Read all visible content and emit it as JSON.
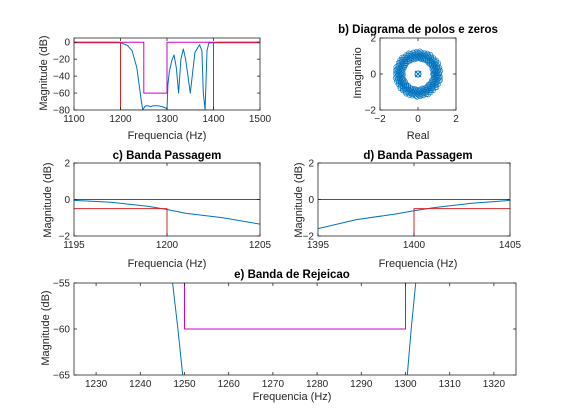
{
  "chart_data": [
    {
      "id": "a",
      "type": "line",
      "title": "",
      "xlabel": "Frequencia (Hz)",
      "ylabel": "Magnitude (dB)",
      "xlim": [
        1100,
        1500
      ],
      "ylim": [
        -80,
        5
      ],
      "xticks": [
        1100,
        1200,
        1300,
        1400,
        1500
      ],
      "yticks": [
        -80,
        -60,
        -40,
        -20,
        0
      ],
      "series": [
        {
          "color": "#0072BD",
          "kind": "response_full",
          "x": [
            1100,
            1150,
            1180,
            1195,
            1200,
            1205,
            1215,
            1225,
            1235,
            1245,
            1248,
            1250,
            1252,
            1255,
            1260,
            1265,
            1270,
            1280,
            1290,
            1299,
            1300,
            1302,
            1305,
            1310,
            1315,
            1320,
            1325,
            1330,
            1335,
            1340,
            1350,
            1360,
            1370,
            1375,
            1378,
            1382,
            1386,
            1390,
            1395,
            1400,
            1410,
            1450,
            1500
          ],
          "y": [
            0,
            0,
            0,
            0,
            -0.5,
            -1.5,
            -4,
            -10,
            -30,
            -70,
            -80,
            -78,
            -76,
            -75,
            -75,
            -76,
            -75,
            -75,
            -76,
            -78,
            -80,
            -50,
            -35,
            -22,
            -15,
            -30,
            -60,
            -20,
            -8,
            -20,
            -60,
            -12,
            -3,
            -10,
            -60,
            -80,
            -10,
            -1,
            -0.5,
            -0.5,
            0,
            0,
            0
          ]
        },
        {
          "color": "#CC00CC",
          "kind": "mask_upper",
          "x": [
            1100,
            1250,
            1250,
            1300,
            1300,
            1500
          ],
          "y": [
            0,
            0,
            -60,
            -60,
            0,
            0
          ]
        },
        {
          "color": "#D62728",
          "kind": "mask_lower",
          "x": [
            1100,
            1200,
            1200,
            1400,
            1400,
            1500
          ],
          "y": [
            -0.5,
            -0.5,
            -80,
            -80,
            -0.5,
            -0.5
          ]
        }
      ]
    },
    {
      "id": "b",
      "type": "scatter",
      "title": "b) Diagrama de polos e zeros",
      "xlabel": "Real",
      "ylabel": "Imaginario",
      "xlim": [
        -2,
        2
      ],
      "ylim": [
        -2,
        2
      ],
      "xticks": [
        -2,
        0,
        2
      ],
      "yticks": [
        -2,
        0,
        2
      ],
      "annotation": "342",
      "points": {
        "shape": "unit_circle_ring",
        "count": 342,
        "radius": 1,
        "color": "#0072BD"
      }
    },
    {
      "id": "c",
      "type": "line",
      "title": "c) Banda Passagem",
      "xlabel": "Frequencia (Hz)",
      "ylabel": "Magnitude (dB)",
      "xlim": [
        1195,
        1205
      ],
      "ylim": [
        -2,
        2
      ],
      "xticks": [
        1195,
        1200,
        1205
      ],
      "yticks": [
        -2,
        0,
        2
      ],
      "series": [
        {
          "color": "#0072BD",
          "kind": "response",
          "x": [
            1195,
            1197,
            1199,
            1200,
            1201,
            1203,
            1205
          ],
          "y": [
            -0.05,
            -0.15,
            -0.38,
            -0.55,
            -0.75,
            -1.0,
            -1.35
          ]
        },
        {
          "color": "#CC00CC",
          "kind": "mask_upper",
          "x": [
            1195,
            1205
          ],
          "y": [
            0,
            0
          ]
        },
        {
          "color": "#D62728",
          "kind": "mask_lower",
          "x": [
            1195,
            1200,
            1200
          ],
          "y": [
            -0.5,
            -0.5,
            -2
          ]
        }
      ]
    },
    {
      "id": "d",
      "type": "line",
      "title": "d) Banda Passagem",
      "xlabel": "Frequencia (Hz)",
      "ylabel": "Magnitude (dB)",
      "xlim": [
        1395,
        1405
      ],
      "ylim": [
        -2,
        2
      ],
      "xticks": [
        1395,
        1400,
        1405
      ],
      "yticks": [
        -2,
        0,
        2
      ],
      "series": [
        {
          "color": "#0072BD",
          "kind": "response",
          "x": [
            1395,
            1397,
            1399,
            1400,
            1401,
            1403,
            1405
          ],
          "y": [
            -1.6,
            -1.1,
            -0.8,
            -0.62,
            -0.45,
            -0.2,
            -0.05
          ]
        },
        {
          "color": "#CC00CC",
          "kind": "mask_upper",
          "x": [
            1395,
            1405
          ],
          "y": [
            0,
            0
          ]
        },
        {
          "color": "#D62728",
          "kind": "mask_lower",
          "x": [
            1400,
            1400,
            1405
          ],
          "y": [
            -2,
            -0.5,
            -0.5
          ]
        }
      ]
    },
    {
      "id": "e",
      "type": "line",
      "title": "e) Banda de Rejeicao",
      "xlabel": "Frequencia (Hz)",
      "ylabel": "Magnitude (dB)",
      "xlim": [
        1225,
        1325
      ],
      "ylim": [
        -65,
        -55
      ],
      "xticks": [
        1230,
        1240,
        1250,
        1260,
        1270,
        1280,
        1290,
        1300,
        1310,
        1320
      ],
      "yticks": [
        -65,
        -60,
        -55
      ],
      "series": [
        {
          "color": "#0072BD",
          "kind": "response",
          "x": [
            1247.3,
            1248.5,
            1249.6
          ],
          "y": [
            -55,
            -60,
            -65
          ]
        },
        {
          "color": "#0072BD",
          "kind": "response",
          "x": [
            1300.4,
            1301.3,
            1302.3
          ],
          "y": [
            -65,
            -60,
            -55
          ]
        },
        {
          "color": "#CC00CC",
          "kind": "mask_upper",
          "x": [
            1250,
            1250,
            1300,
            1300
          ],
          "y": [
            -55,
            -60,
            -60,
            -55
          ]
        }
      ]
    }
  ]
}
